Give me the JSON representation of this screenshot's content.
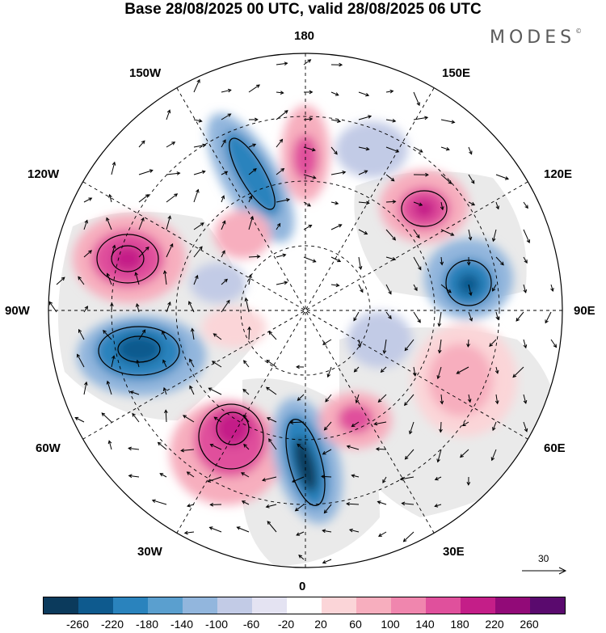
{
  "title": "Base 28/08/2025 00 UTC, valid 28/08/2025 06 UTC",
  "brand": {
    "name": "MODES",
    "mark": "©"
  },
  "longitude_labels": {
    "top": "180",
    "bottom": "0",
    "left": "90W",
    "right": "90E",
    "upper_left_1": "150W",
    "upper_left_2": "120W",
    "upper_right_1": "150E",
    "upper_right_2": "120E",
    "lower_left_1": "60W",
    "lower_left_2": "30W",
    "lower_right_1": "60E",
    "lower_right_2": "30E"
  },
  "reference_vector": {
    "label": "30"
  },
  "colorbar": {
    "colors": [
      "#0b3a5c",
      "#0e5a8e",
      "#2a83bd",
      "#5a9fcf",
      "#92b6dd",
      "#c2cbe6",
      "#e4e3f2",
      "#ffffff",
      "#fbd5d8",
      "#f7aebe",
      "#f086ae",
      "#e0509c",
      "#c41e88",
      "#920a78",
      "#5a0a6e"
    ],
    "tick_labels": [
      "-260",
      "-220",
      "-180",
      "-140",
      "-100",
      "-60",
      "-20",
      "20",
      "60",
      "100",
      "140",
      "180",
      "220",
      "260"
    ]
  },
  "field_anomalies": [
    {
      "region": "north pacific 150W",
      "value": -180
    },
    {
      "region": "near pole 180",
      "value": 150
    },
    {
      "region": "siberia 120E",
      "value": 200
    },
    {
      "region": "east siberia 90E",
      "value": -200
    },
    {
      "region": "alaska 120W",
      "value": 220
    },
    {
      "region": "canada 90W",
      "value": -230
    },
    {
      "region": "north atlantic 45W",
      "value": 230
    },
    {
      "region": "scandinavia 10W",
      "value": -240
    },
    {
      "region": "central asia 60E",
      "value": 130
    },
    {
      "region": "western russia 30E",
      "value": 150
    }
  ]
}
